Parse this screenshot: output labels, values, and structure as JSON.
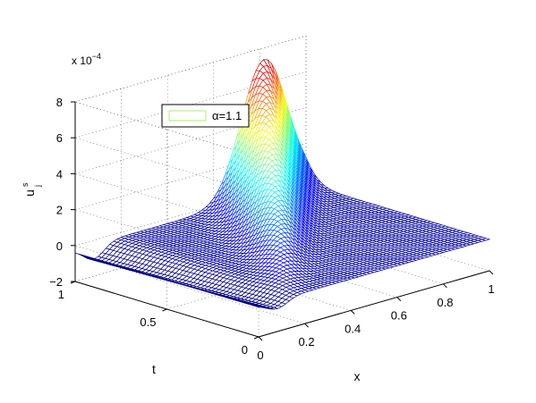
{
  "chart_data": {
    "type": "surface-mesh",
    "zlabel_main": "u",
    "zlabel_sup": "s",
    "zlabel_sub": "j",
    "xlabel": "x",
    "ylabel": "t",
    "multiplier_base": "x 10",
    "multiplier_exp": "−4",
    "xlim": [
      0,
      1
    ],
    "ylim": [
      0,
      1
    ],
    "zlim": [
      -2,
      8
    ],
    "xticks": [
      "0",
      "0.2",
      "0.4",
      "0.6",
      "0.8",
      "1"
    ],
    "xtick_values": [
      0,
      0.2,
      0.4,
      0.6,
      0.8,
      1
    ],
    "yticks": [
      "0",
      "0.5",
      "1"
    ],
    "ytick_values": [
      0,
      0.5,
      1
    ],
    "zticks": [
      "−2",
      "0",
      "2",
      "4",
      "6",
      "8"
    ],
    "ztick_values": [
      -2,
      0,
      2,
      4,
      6,
      8
    ],
    "grid": true,
    "legend": {
      "placement": "upper-left",
      "entries": [
        {
          "label": "α=1.1",
          "color": "#b7f77f"
        }
      ]
    },
    "surface": {
      "peak_value": 7.6,
      "peak_x": 0.82,
      "peak_t": 1.0,
      "min_value": -0.8,
      "colormap": "jet"
    }
  }
}
